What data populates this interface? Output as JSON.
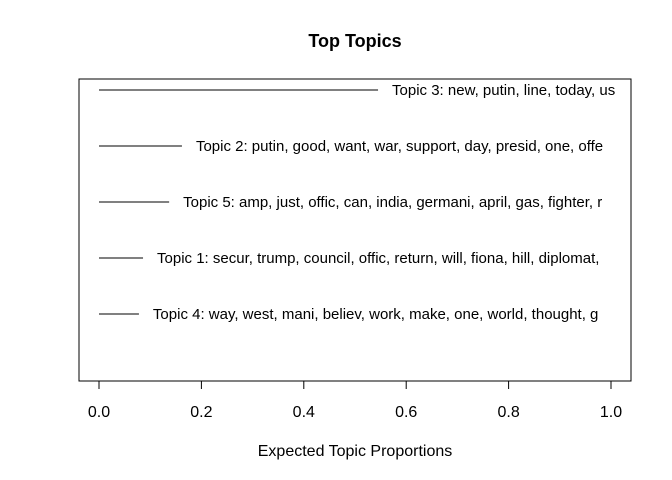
{
  "chart_data": {
    "type": "bar",
    "orientation": "horizontal",
    "title": "Top Topics",
    "xlabel": "Expected Topic Proportions",
    "ylabel": "",
    "xlim": [
      0,
      1.0
    ],
    "xticks": [
      0.0,
      0.2,
      0.4,
      0.6,
      0.8,
      1.0
    ],
    "xtick_labels": [
      "0.0",
      "0.2",
      "0.4",
      "0.6",
      "0.8",
      "1.0"
    ],
    "grid": false,
    "legend": false,
    "bars": [
      {
        "label": "Topic 3: new, putin, line, today, us",
        "value": 0.545
      },
      {
        "label": "Topic 2: putin, good, want, war, support, day, presid, one, offe",
        "value": 0.162
      },
      {
        "label": "Topic 5: amp, just, offic, can, india, germani, april, gas, fighter, r",
        "value": 0.137
      },
      {
        "label": "Topic 1: secur, trump, council, offic, return, will, fiona, hill, diplomat,",
        "value": 0.086
      },
      {
        "label": "Topic 4: way, west, mani, believ, work, make, one, world, thought, g",
        "value": 0.078
      }
    ]
  }
}
